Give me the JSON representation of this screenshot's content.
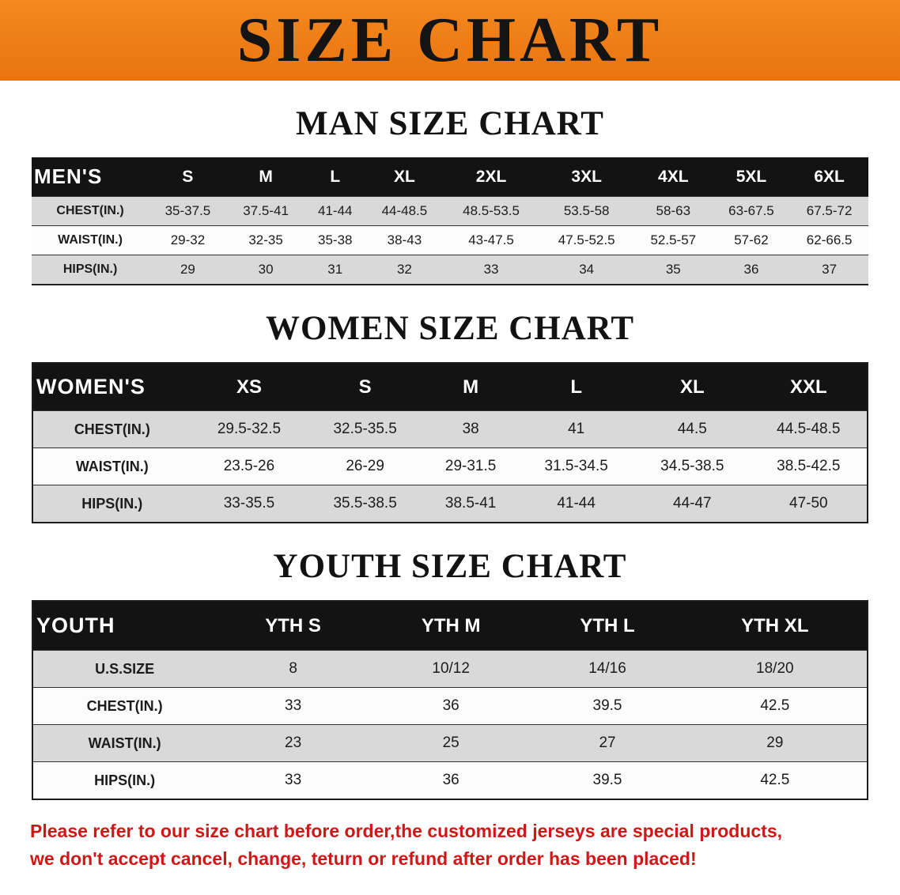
{
  "banner": {
    "title": "SIZE CHART"
  },
  "colors": {
    "banner_bg": "#ee7f18",
    "banner_text": "#141414",
    "table_header_bg": "#131313",
    "table_header_text": "#ffffff",
    "row_shade": "#d9d9d9",
    "footer_text": "#d01616"
  },
  "sections": [
    {
      "heading": "MAN SIZE CHART",
      "table": {
        "corner_label": "MEN'S",
        "columns": [
          "S",
          "M",
          "L",
          "XL",
          "2XL",
          "3XL",
          "4XL",
          "5XL",
          "6XL"
        ],
        "rows": [
          {
            "label": "CHEST(IN.)",
            "values": [
              "35-37.5",
              "37.5-41",
              "41-44",
              "44-48.5",
              "48.5-53.5",
              "53.5-58",
              "58-63",
              "63-67.5",
              "67.5-72"
            ]
          },
          {
            "label": "WAIST(IN.)",
            "values": [
              "29-32",
              "32-35",
              "35-38",
              "38-43",
              "43-47.5",
              "47.5-52.5",
              "52.5-57",
              "57-62",
              "62-66.5"
            ]
          },
          {
            "label": "HIPS(IN.)",
            "values": [
              "29",
              "30",
              "31",
              "32",
              "33",
              "34",
              "35",
              "36",
              "37"
            ]
          }
        ]
      }
    },
    {
      "heading": "WOMEN SIZE CHART",
      "table": {
        "corner_label": "WOMEN'S",
        "columns": [
          "XS",
          "S",
          "M",
          "L",
          "XL",
          "XXL"
        ],
        "rows": [
          {
            "label": "CHEST(IN.)",
            "values": [
              "29.5-32.5",
              "32.5-35.5",
              "38",
              "41",
              "44.5",
              "44.5-48.5"
            ]
          },
          {
            "label": "WAIST(IN.)",
            "values": [
              "23.5-26",
              "26-29",
              "29-31.5",
              "31.5-34.5",
              "34.5-38.5",
              "38.5-42.5"
            ]
          },
          {
            "label": "HIPS(IN.)",
            "values": [
              "33-35.5",
              "35.5-38.5",
              "38.5-41",
              "41-44",
              "44-47",
              "47-50"
            ]
          }
        ]
      }
    },
    {
      "heading": "YOUTH SIZE CHART",
      "table": {
        "corner_label": "YOUTH",
        "columns": [
          "YTH S",
          "YTH M",
          "YTH L",
          "YTH XL"
        ],
        "rows": [
          {
            "label": "U.S.SIZE",
            "values": [
              "8",
              "10/12",
              "14/16",
              "18/20"
            ]
          },
          {
            "label": "CHEST(IN.)",
            "values": [
              "33",
              "36",
              "39.5",
              "42.5"
            ]
          },
          {
            "label": "WAIST(IN.)",
            "values": [
              "23",
              "25",
              "27",
              "29"
            ]
          },
          {
            "label": "HIPS(IN.)",
            "values": [
              "33",
              "36",
              "39.5",
              "42.5"
            ]
          }
        ]
      }
    }
  ],
  "footer": {
    "lines": [
      "Please refer to our size chart before order,the customized jerseys are special products,",
      "we don't accept cancel, change, teturn or refund after order has been placed!"
    ]
  }
}
